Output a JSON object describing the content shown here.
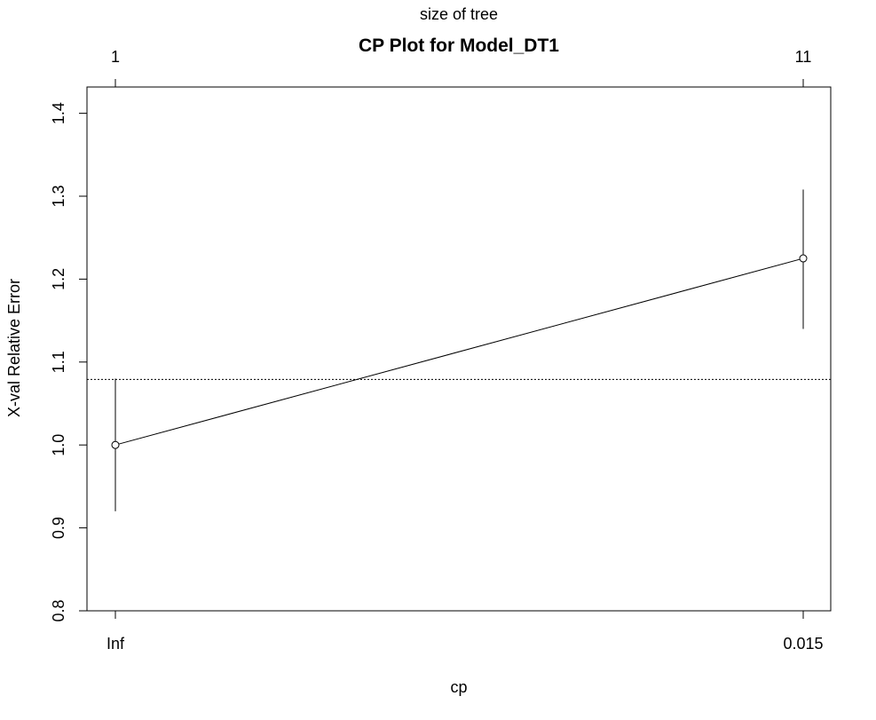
{
  "chart_data": {
    "type": "line",
    "title": "CP Plot for Model_DT1",
    "xlabel": "cp",
    "ylabel": "X-val Relative Error",
    "top_axis_label": "size of tree",
    "x_categories": [
      "Inf",
      "0.015"
    ],
    "top_ticks": [
      "1",
      "11"
    ],
    "y_ticks": [
      "0.8",
      "0.9",
      "1.0",
      "1.1",
      "1.2",
      "1.3",
      "1.4"
    ],
    "ylim": [
      0.8,
      1.43
    ],
    "points": [
      {
        "cp": "Inf",
        "size": 1,
        "xerror": 1.0,
        "lower": 0.92,
        "upper": 1.08
      },
      {
        "cp": "0.015",
        "size": 11,
        "xerror": 1.225,
        "lower": 1.14,
        "upper": 1.308
      }
    ],
    "reference_line": {
      "y": 1.079,
      "style": "dotted"
    },
    "grid": false,
    "legend": "none"
  }
}
